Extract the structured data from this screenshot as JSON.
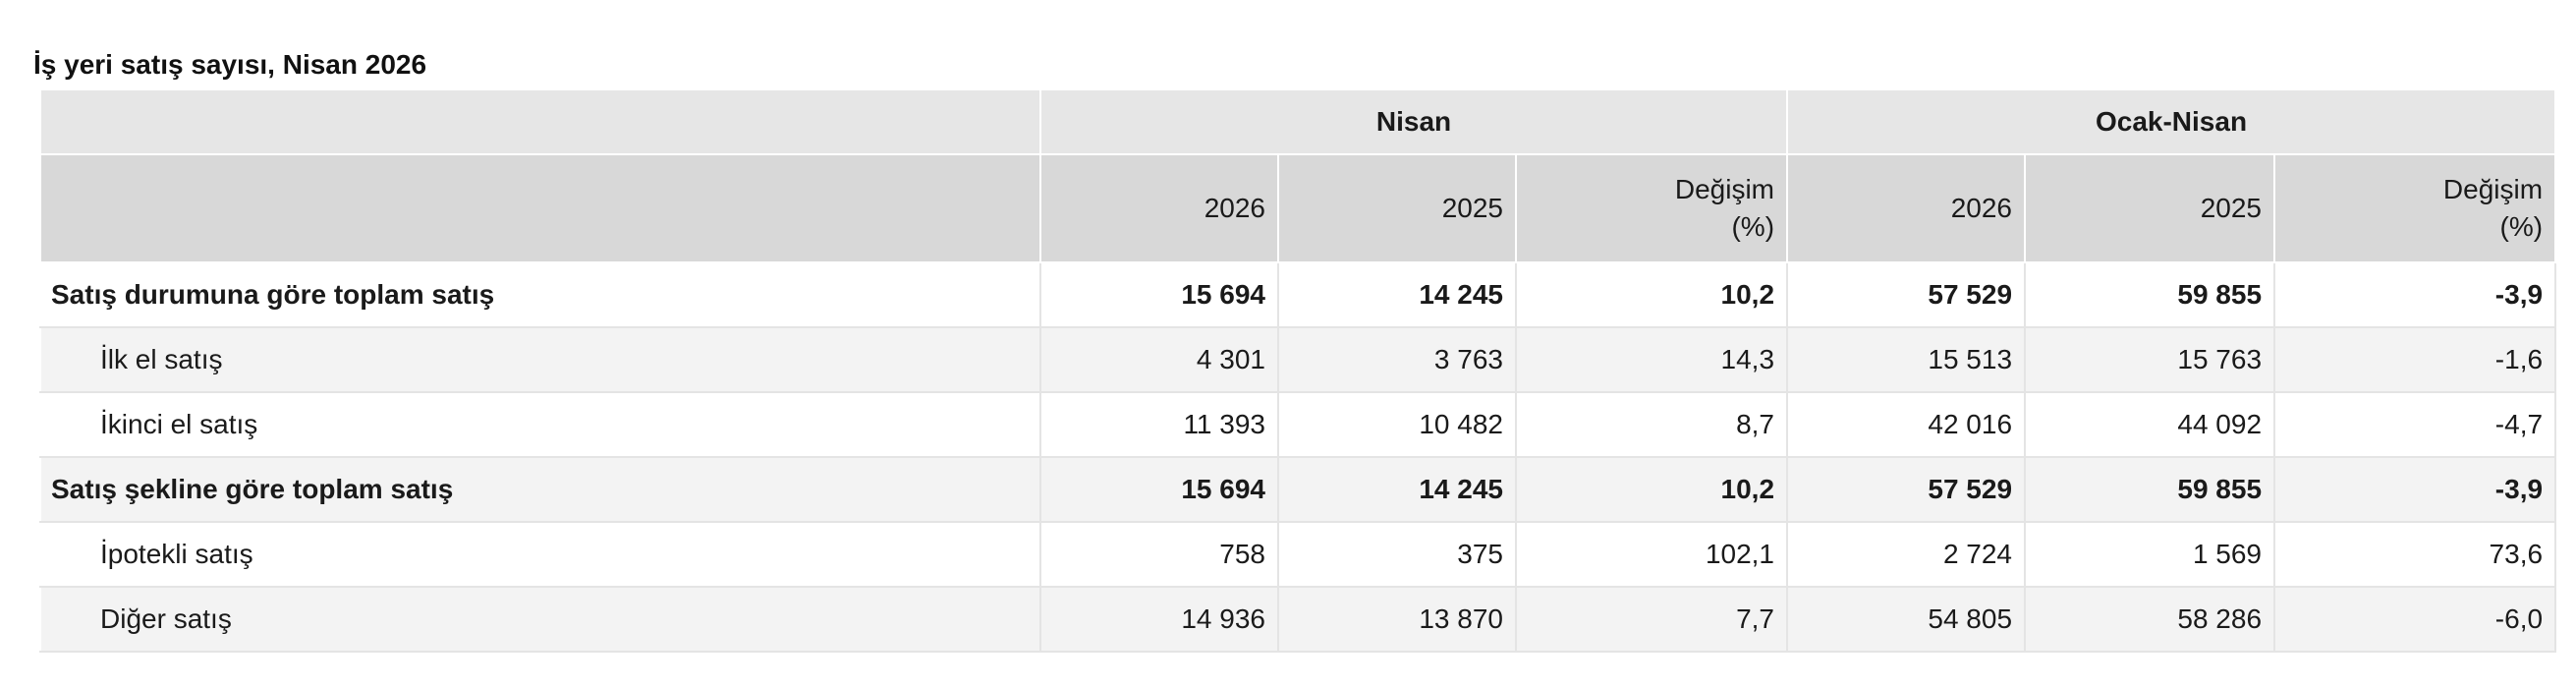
{
  "caption": "İş yeri satış sayısı, Nisan 2026",
  "header": {
    "group1": "Nisan",
    "group2": "Ocak-Nisan",
    "cols": [
      "2026",
      "2025",
      "Değişim",
      "2026",
      "2025",
      "Değişim"
    ],
    "cols_sub": [
      "",
      "",
      "(%)",
      "",
      "",
      "(%)"
    ]
  },
  "rows": [
    {
      "label": "Satış durumuna göre toplam satış",
      "values": [
        "15 694",
        "14 245",
        "10,2",
        "57 529",
        "59 855",
        "-3,9"
      ]
    },
    {
      "label": "İlk el satış",
      "values": [
        "4 301",
        "3 763",
        "14,3",
        "15 513",
        "15 763",
        "-1,6"
      ]
    },
    {
      "label": "İkinci el satış",
      "values": [
        "11 393",
        "10 482",
        "8,7",
        "42 016",
        "44 092",
        "-4,7"
      ]
    },
    {
      "label": "Satış şekline göre toplam satış",
      "values": [
        "15 694",
        "14 245",
        "10,2",
        "57 529",
        "59 855",
        "-3,9"
      ]
    },
    {
      "label": "İpotekli satış",
      "values": [
        "758",
        "375",
        "102,1",
        "2 724",
        "1 569",
        "73,6"
      ]
    },
    {
      "label": "Diğer satış",
      "values": [
        "14 936",
        "13 870",
        "7,7",
        "54 805",
        "58 286",
        "-6,0"
      ]
    }
  ]
}
